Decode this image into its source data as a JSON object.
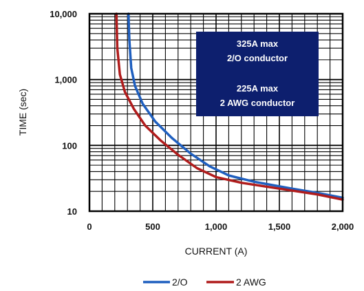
{
  "chart_data": {
    "type": "line",
    "xlabel": "CURRENT (A)",
    "ylabel": "TIME (sec)",
    "xlim": [
      0,
      2000
    ],
    "ylim": [
      10,
      10000
    ],
    "yscale": "log",
    "grid": true,
    "x_ticks": [
      0,
      500,
      1000,
      1500,
      2000
    ],
    "x_tick_labels": [
      "0",
      "500",
      "1,000",
      "1,500",
      "2,000"
    ],
    "y_ticks": [
      10,
      100,
      1000,
      10000
    ],
    "y_tick_labels": [
      "10",
      "100",
      "1,000",
      "10,000"
    ],
    "legend_position": "bottom",
    "annotation": {
      "lines": [
        "325A max",
        "2/O conductor",
        "",
        "225A max",
        "2 AWG conductor"
      ],
      "background": "#0d1f6e"
    },
    "series": [
      {
        "name": "2/O",
        "color": "#1f5fbf",
        "points": [
          [
            308,
            10000
          ],
          [
            315,
            4000
          ],
          [
            330,
            1500
          ],
          [
            360,
            800
          ],
          [
            420,
            430
          ],
          [
            520,
            230
          ],
          [
            650,
            130
          ],
          [
            800,
            75
          ],
          [
            950,
            48
          ],
          [
            1100,
            35
          ],
          [
            1300,
            28
          ],
          [
            1600,
            22
          ],
          [
            1800,
            19
          ],
          [
            2000,
            16
          ]
        ]
      },
      {
        "name": "2 AWG",
        "color": "#b01c1c",
        "points": [
          [
            213,
            10000
          ],
          [
            220,
            3000
          ],
          [
            240,
            1200
          ],
          [
            280,
            650
          ],
          [
            350,
            360
          ],
          [
            440,
            200
          ],
          [
            560,
            120
          ],
          [
            700,
            72
          ],
          [
            850,
            45
          ],
          [
            1000,
            33
          ],
          [
            1200,
            27
          ],
          [
            1500,
            22
          ],
          [
            1800,
            18
          ],
          [
            2000,
            15
          ]
        ]
      }
    ]
  }
}
